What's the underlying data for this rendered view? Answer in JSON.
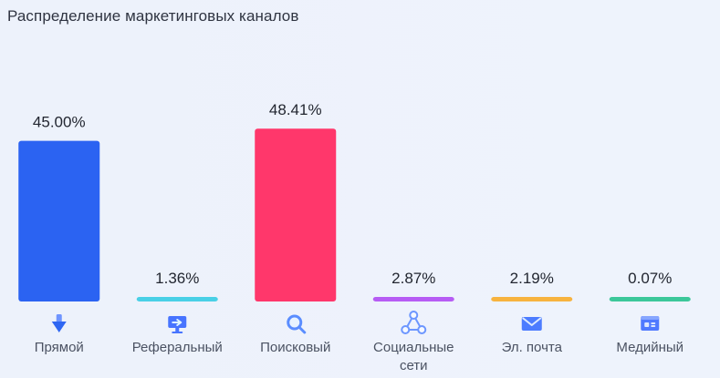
{
  "chart_data": {
    "type": "bar",
    "title": "Распределение маркетинговых каналов",
    "categories": [
      "Прямой",
      "Реферальный",
      "Поисковый",
      "Социальные сети",
      "Эл. почта",
      "Медийный"
    ],
    "category_lines": [
      [
        "Прямой"
      ],
      [
        "Реферальный"
      ],
      [
        "Поисковый"
      ],
      [
        "Социальные",
        "сети"
      ],
      [
        "Эл. почта"
      ],
      [
        "Медийный"
      ]
    ],
    "values": [
      45.0,
      1.36,
      48.41,
      2.87,
      2.19,
      0.07
    ],
    "value_labels": [
      "45.00%",
      "1.36%",
      "48.41%",
      "2.87%",
      "2.19%",
      "0.07%"
    ],
    "colors": [
      "#2b63f2",
      "#49d0e6",
      "#ff376b",
      "#b65cf4",
      "#f7b33f",
      "#3cc79a"
    ],
    "icons": [
      "download-arrow-icon",
      "monitor-arrow-icon",
      "search-icon",
      "share-network-icon",
      "envelope-icon",
      "window-media-icon"
    ],
    "ylim": [
      0,
      50
    ],
    "grid": false,
    "legend": "none",
    "xlabel": "",
    "ylabel": ""
  }
}
